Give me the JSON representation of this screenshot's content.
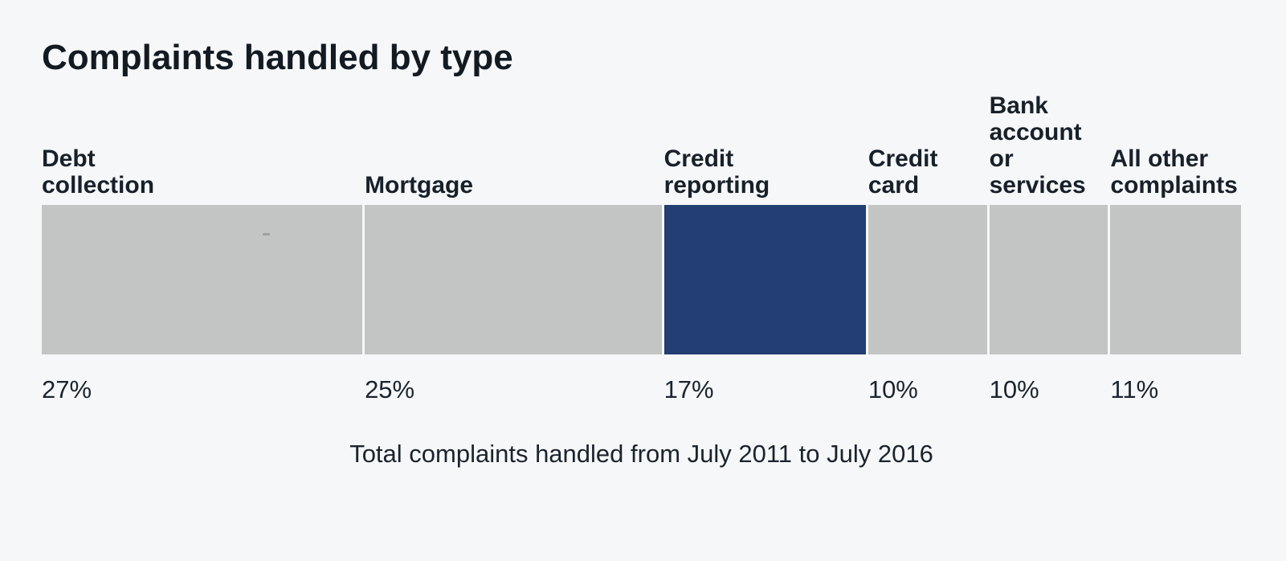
{
  "title": "Complaints handled by type",
  "footnote": "Total complaints handled from July 2011 to July 2016",
  "colors": {
    "background": "#f6f7f9",
    "muted_segment": "#c3c4c4",
    "highlight_segment": "#223e72",
    "text": "#131a22"
  },
  "chart_data": {
    "type": "bar",
    "subtype": "horizontal-stacked-percentage-bar",
    "title": "Complaints handled by type",
    "note": "Total complaints handled from July 2011 to July 2016",
    "unit": "%",
    "categories": [
      "Debt collection",
      "Mortgage",
      "Credit reporting",
      "Credit card",
      "Bank account or services",
      "All other complaints"
    ],
    "values": [
      27,
      25,
      17,
      10,
      10,
      11
    ],
    "highlighted_category": "Credit reporting",
    "legend": "none",
    "axes": "none",
    "segments": [
      {
        "category": "Debt collection",
        "label": "Debt\ncollection",
        "value": 27,
        "value_label": "27%",
        "highlighted": false
      },
      {
        "category": "Mortgage",
        "label": "Mortgage",
        "value": 25,
        "value_label": "25%",
        "highlighted": false
      },
      {
        "category": "Credit reporting",
        "label": "Credit\nreporting",
        "value": 17,
        "value_label": "17%",
        "highlighted": true
      },
      {
        "category": "Credit card",
        "label": "Credit\ncard",
        "value": 10,
        "value_label": "10%",
        "highlighted": false
      },
      {
        "category": "Bank account or services",
        "label": "Bank\naccount\nor services",
        "value": 10,
        "value_label": "10%",
        "highlighted": false
      },
      {
        "category": "All other complaints",
        "label": "All other\ncomplaints",
        "value": 11,
        "value_label": "11%",
        "highlighted": false
      }
    ]
  }
}
